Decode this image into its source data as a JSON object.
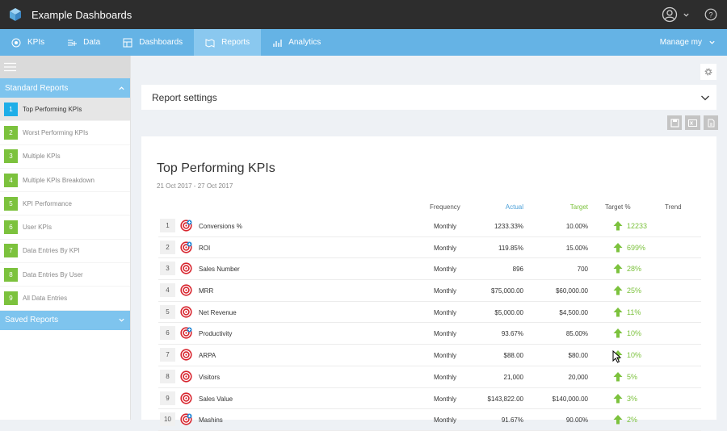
{
  "app": {
    "title": "Example Dashboards"
  },
  "icons": {
    "logo": "cube-logo-icon",
    "user": "user-circle-icon",
    "help": "help-icon",
    "gear": "gear-icon",
    "chevron": "chevron-down-icon",
    "save": "save-icon",
    "excel": "excel-icon",
    "pdf": "pdf-icon",
    "kpi": "target-icon",
    "trend": "arrow-up-icon"
  },
  "colors": {
    "topbar": "#2d2d2d",
    "nav": "#65b3e5",
    "accent_green": "#7cc23d",
    "accent_blue": "#1eaee8"
  },
  "nav": {
    "items": [
      {
        "label": "KPIs",
        "icon": "kpis-icon"
      },
      {
        "label": "Data",
        "icon": "data-add-icon"
      },
      {
        "label": "Dashboards",
        "icon": "dashboards-icon"
      },
      {
        "label": "Reports",
        "icon": "reports-icon",
        "active": true
      },
      {
        "label": "Analytics",
        "icon": "analytics-icon"
      }
    ],
    "manage": "Manage my"
  },
  "sidebar": {
    "standard_title": "Standard Reports",
    "saved_title": "Saved Reports",
    "items": [
      {
        "num": "1",
        "label": "Top Performing KPIs",
        "active": true
      },
      {
        "num": "2",
        "label": "Worst Performing KPIs"
      },
      {
        "num": "3",
        "label": "Multiple KPIs"
      },
      {
        "num": "4",
        "label": "Multiple KPIs Breakdown"
      },
      {
        "num": "5",
        "label": "KPI Performance"
      },
      {
        "num": "6",
        "label": "User KPIs"
      },
      {
        "num": "7",
        "label": "Data Entries By KPI"
      },
      {
        "num": "8",
        "label": "Data Entries By User"
      },
      {
        "num": "9",
        "label": "All Data Entries"
      }
    ]
  },
  "settings": {
    "title": "Report settings"
  },
  "report": {
    "title": "Top Performing KPIs",
    "dates": "21 Oct 2017 - 27 Oct 2017",
    "headers": {
      "frequency": "Frequency",
      "actual": "Actual",
      "target": "Target",
      "target_pct": "Target %",
      "trend": "Trend"
    },
    "rows": [
      {
        "rank": "1",
        "name": "Conversions %",
        "frequency": "Monthly",
        "actual": "1233.33%",
        "target": "10.00%",
        "pct": "12233",
        "icon_variant": "target-plus"
      },
      {
        "rank": "2",
        "name": "ROI",
        "frequency": "Monthly",
        "actual": "119.85%",
        "target": "15.00%",
        "pct": "699%",
        "icon_variant": "target-plus"
      },
      {
        "rank": "3",
        "name": "Sales Number",
        "frequency": "Monthly",
        "actual": "896",
        "target": "700",
        "pct": "28%",
        "icon_variant": "target"
      },
      {
        "rank": "4",
        "name": "MRR",
        "frequency": "Monthly",
        "actual": "$75,000.00",
        "target": "$60,000.00",
        "pct": "25%",
        "icon_variant": "target"
      },
      {
        "rank": "5",
        "name": "Net Revenue",
        "frequency": "Monthly",
        "actual": "$5,000.00",
        "target": "$4,500.00",
        "pct": "11%",
        "icon_variant": "target"
      },
      {
        "rank": "6",
        "name": "Productivity",
        "frequency": "Monthly",
        "actual": "93.67%",
        "target": "85.00%",
        "pct": "10%",
        "icon_variant": "target-plus"
      },
      {
        "rank": "7",
        "name": "ARPA",
        "frequency": "Monthly",
        "actual": "$88.00",
        "target": "$80.00",
        "pct": "10%",
        "icon_variant": "target"
      },
      {
        "rank": "8",
        "name": "Visitors",
        "frequency": "Monthly",
        "actual": "21,000",
        "target": "20,000",
        "pct": "5%",
        "icon_variant": "target"
      },
      {
        "rank": "9",
        "name": "Sales Value",
        "frequency": "Monthly",
        "actual": "$143,822.00",
        "target": "$140,000.00",
        "pct": "3%",
        "icon_variant": "target"
      },
      {
        "rank": "10",
        "name": "Mashins",
        "frequency": "Monthly",
        "actual": "91.67%",
        "target": "90.00%",
        "pct": "2%",
        "icon_variant": "target-plus"
      }
    ]
  }
}
